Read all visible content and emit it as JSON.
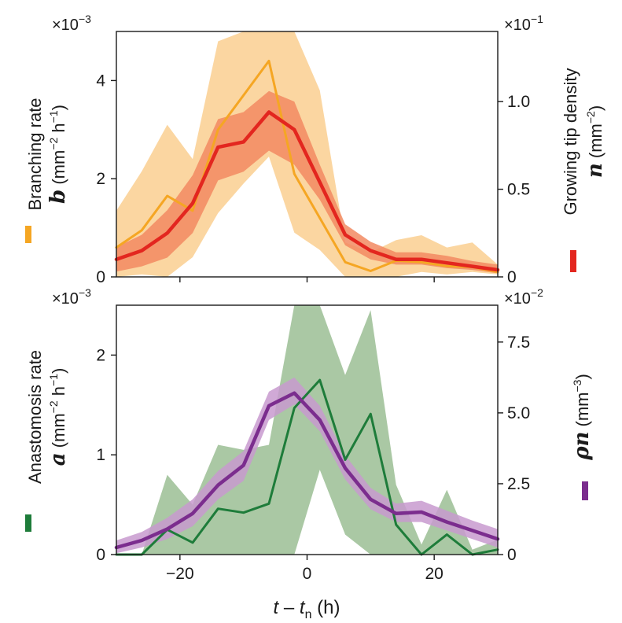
{
  "chart_data": [
    {
      "type": "line",
      "panel": "top",
      "xlabel_parts": {
        "t": "t",
        "dash": " – ",
        "tn": "t",
        "n_sub": "n",
        "unit": " (h)"
      },
      "xlim": [
        -30,
        30
      ],
      "xticks": [
        -20,
        0,
        20
      ],
      "xtick_labels": [
        "−20",
        "0",
        "20"
      ],
      "left_axis": {
        "label_name": "Branching rate",
        "label_symbol": "b",
        "label_unit_parts": [
          "(mm",
          "−2",
          " h",
          "−1",
          ")"
        ],
        "multiplier_base": "×10",
        "multiplier_exp": "−3",
        "ylim": [
          0,
          5
        ],
        "ticks": [
          0,
          2,
          4
        ],
        "tick_labels": [
          "0",
          "2",
          "4"
        ],
        "color": "#F5A623"
      },
      "right_axis": {
        "label_name": "Growing tip density",
        "label_symbol": "n",
        "label_unit_parts": [
          "(mm",
          "−2",
          ")"
        ],
        "multiplier_base": "×10",
        "multiplier_exp": "−1",
        "ylim": [
          0,
          1.4
        ],
        "ticks": [
          0,
          0.5,
          1.0
        ],
        "tick_labels": [
          "0",
          "0.5",
          "1.0"
        ],
        "color": "#E3261F"
      },
      "series": [
        {
          "name": "Branching rate b",
          "axis": "left",
          "color": "#F5A623",
          "band_color": "#FBD49C",
          "x": [
            -30,
            -26,
            -22,
            -18,
            -14,
            -10,
            -6,
            -2,
            2,
            6,
            10,
            14,
            18,
            22,
            26,
            30
          ],
          "y": [
            0.6,
            0.95,
            1.65,
            1.35,
            3.0,
            3.7,
            4.4,
            2.1,
            1.2,
            0.3,
            0.12,
            0.33,
            0.3,
            0.22,
            0.2,
            0.1
          ],
          "lower": [
            0.0,
            0.05,
            0.0,
            0.4,
            1.3,
            1.9,
            2.45,
            0.9,
            0.55,
            0.0,
            0.0,
            0.0,
            0.1,
            0.05,
            0.1,
            0.05
          ],
          "upper": [
            1.35,
            2.15,
            3.1,
            2.4,
            4.8,
            5.0,
            5.0,
            5.0,
            3.8,
            0.7,
            0.5,
            0.75,
            0.85,
            0.6,
            0.7,
            0.25
          ]
        },
        {
          "name": "Growing tip density n",
          "axis": "right",
          "color": "#E3261F",
          "band_color": "#F28A62",
          "x": [
            -30,
            -26,
            -22,
            -18,
            -14,
            -10,
            -6,
            -2,
            2,
            6,
            10,
            14,
            18,
            22,
            26,
            30
          ],
          "y": [
            0.1,
            0.15,
            0.25,
            0.42,
            0.74,
            0.77,
            0.94,
            0.84,
            0.54,
            0.24,
            0.15,
            0.1,
            0.1,
            0.08,
            0.06,
            0.04
          ],
          "lower": [
            0.03,
            0.06,
            0.11,
            0.25,
            0.55,
            0.6,
            0.72,
            0.64,
            0.44,
            0.18,
            0.1,
            0.07,
            0.07,
            0.05,
            0.04,
            0.02
          ],
          "upper": [
            0.17,
            0.24,
            0.38,
            0.58,
            0.9,
            0.94,
            1.06,
            1.0,
            0.64,
            0.3,
            0.2,
            0.14,
            0.14,
            0.12,
            0.09,
            0.07
          ]
        }
      ]
    },
    {
      "type": "line",
      "panel": "bottom",
      "xlim": [
        -30,
        30
      ],
      "xticks": [
        -20,
        0,
        20
      ],
      "xtick_labels": [
        "−20",
        "0",
        "20"
      ],
      "left_axis": {
        "label_name": "Anastomosis rate",
        "label_symbol": "a",
        "label_unit_parts": [
          "(mm",
          "−2",
          " h",
          "−1",
          ")"
        ],
        "multiplier_base": "×10",
        "multiplier_exp": "−3",
        "ylim": [
          0,
          2.5
        ],
        "ticks": [
          0,
          1,
          2
        ],
        "tick_labels": [
          "0",
          "1",
          "2"
        ],
        "color": "#1E7C3A"
      },
      "right_axis": {
        "label_symbol": "ρn",
        "label_unit_parts": [
          "(mm",
          "−3",
          ")"
        ],
        "multiplier_base": "×10",
        "multiplier_exp": "−2",
        "ylim": [
          0,
          8.8
        ],
        "ticks": [
          0,
          2.5,
          5.0,
          7.5
        ],
        "tick_labels": [
          "0",
          "2.5",
          "5.0",
          "7.5"
        ],
        "color": "#7B2D8E"
      },
      "series": [
        {
          "name": "Anastomosis rate a",
          "axis": "left",
          "color": "#1E7C3A",
          "band_color": "#A5C59F",
          "x": [
            -30,
            -26,
            -22,
            -18,
            -14,
            -10,
            -6,
            -2,
            2,
            6,
            10,
            14,
            18,
            22,
            26,
            30
          ],
          "y": [
            0.0,
            0.0,
            0.25,
            0.12,
            0.46,
            0.42,
            0.51,
            1.47,
            1.75,
            0.95,
            1.41,
            0.3,
            0.0,
            0.2,
            0.0,
            0.05
          ],
          "lower": [
            0.0,
            0.0,
            0.0,
            0.0,
            0.0,
            0.0,
            0.0,
            0.0,
            0.85,
            0.2,
            0.0,
            0.0,
            0.0,
            0.0,
            0.0,
            0.0
          ],
          "upper": [
            0.0,
            0.0,
            0.8,
            0.5,
            1.1,
            1.05,
            1.1,
            2.5,
            2.5,
            1.8,
            2.45,
            0.7,
            0.1,
            0.65,
            0.05,
            0.15
          ]
        },
        {
          "name": "ρn",
          "axis": "right",
          "color": "#7B2D8E",
          "band_color": "#C89ACF",
          "x": [
            -30,
            -26,
            -22,
            -18,
            -14,
            -10,
            -6,
            -2,
            2,
            6,
            10,
            14,
            18,
            22,
            26,
            30
          ],
          "y": [
            0.25,
            0.5,
            0.9,
            1.45,
            2.45,
            3.15,
            5.25,
            5.7,
            4.75,
            3.05,
            1.95,
            1.45,
            1.5,
            1.15,
            0.85,
            0.55
          ],
          "lower": [
            0.05,
            0.25,
            0.55,
            1.0,
            1.95,
            2.6,
            4.75,
            5.3,
            4.35,
            2.65,
            1.6,
            1.15,
            1.15,
            0.85,
            0.55,
            0.25
          ],
          "upper": [
            0.5,
            0.8,
            1.3,
            1.95,
            2.95,
            3.65,
            5.75,
            6.25,
            5.25,
            3.5,
            2.35,
            1.8,
            1.9,
            1.55,
            1.2,
            0.9
          ]
        }
      ]
    }
  ]
}
